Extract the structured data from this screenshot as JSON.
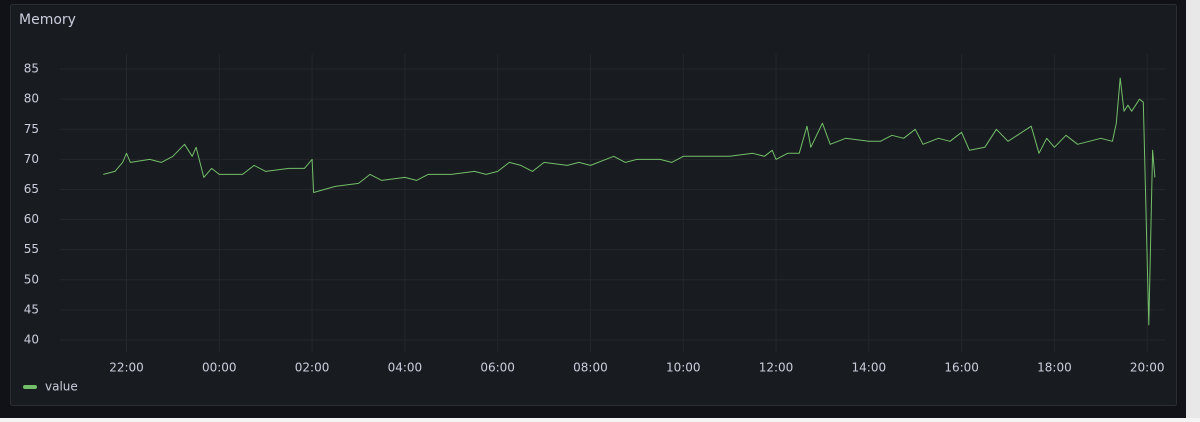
{
  "chart_data": {
    "type": "line",
    "title": "Memory",
    "x": [
      "21:30",
      "21:45",
      "21:55",
      "22:00",
      "22:05",
      "22:30",
      "22:45",
      "23:00",
      "23:15",
      "23:25",
      "23:30",
      "23:40",
      "23:50",
      "00:00",
      "00:30",
      "00:45",
      "01:00",
      "01:30",
      "01:50",
      "02:00",
      "02:02",
      "02:30",
      "03:00",
      "03:15",
      "03:30",
      "04:00",
      "04:15",
      "04:30",
      "05:00",
      "05:30",
      "05:45",
      "06:00",
      "06:15",
      "06:30",
      "06:45",
      "07:00",
      "07:30",
      "07:45",
      "08:00",
      "08:30",
      "08:45",
      "09:00",
      "09:30",
      "09:45",
      "10:00",
      "10:30",
      "11:00",
      "11:30",
      "11:45",
      "11:55",
      "12:00",
      "12:15",
      "12:30",
      "12:40",
      "12:45",
      "13:00",
      "13:10",
      "13:30",
      "14:00",
      "14:15",
      "14:30",
      "14:45",
      "15:00",
      "15:10",
      "15:30",
      "15:45",
      "16:00",
      "16:10",
      "16:30",
      "16:45",
      "17:00",
      "17:30",
      "17:40",
      "17:50",
      "18:00",
      "18:15",
      "18:30",
      "19:00",
      "19:15",
      "19:20",
      "19:25",
      "19:30",
      "19:35",
      "19:40",
      "19:50",
      "19:55",
      "20:02",
      "20:07",
      "20:10"
    ],
    "series": [
      {
        "name": "value",
        "color": "#73bf69",
        "values": [
          67.5,
          68,
          69.5,
          71,
          69.5,
          70,
          69.5,
          70.5,
          72.5,
          70.5,
          72,
          67,
          68.5,
          67.5,
          67.5,
          69,
          68,
          68.5,
          68.5,
          70,
          64.5,
          65.5,
          66,
          67.5,
          66.5,
          67,
          66.5,
          67.5,
          67.5,
          68,
          67.5,
          68,
          69.5,
          69,
          68,
          69.5,
          69,
          69.5,
          69,
          70.5,
          69.5,
          70,
          70,
          69.5,
          70.5,
          70.5,
          70.5,
          71,
          70.5,
          71.5,
          70,
          71,
          71,
          75.5,
          72,
          76,
          72.5,
          73.5,
          73,
          73,
          74,
          73.5,
          75,
          72.5,
          73.5,
          73,
          74.5,
          71.5,
          72,
          75,
          73,
          75.5,
          71,
          73.5,
          72,
          74,
          72.5,
          73.5,
          73,
          76,
          83.5,
          78,
          79,
          78,
          80,
          79.5,
          42.5,
          71.5,
          67
        ]
      }
    ],
    "xlim": [
      "20:34",
      "20:23"
    ],
    "xticks": [
      "22:00",
      "00:00",
      "02:00",
      "04:00",
      "06:00",
      "08:00",
      "10:00",
      "12:00",
      "14:00",
      "16:00",
      "18:00",
      "20:00"
    ],
    "ylim": [
      38,
      87.5
    ],
    "yticks": [
      40,
      45,
      50,
      55,
      60,
      65,
      70,
      75,
      80,
      85
    ],
    "grid": true,
    "legend": "bottom-left"
  }
}
